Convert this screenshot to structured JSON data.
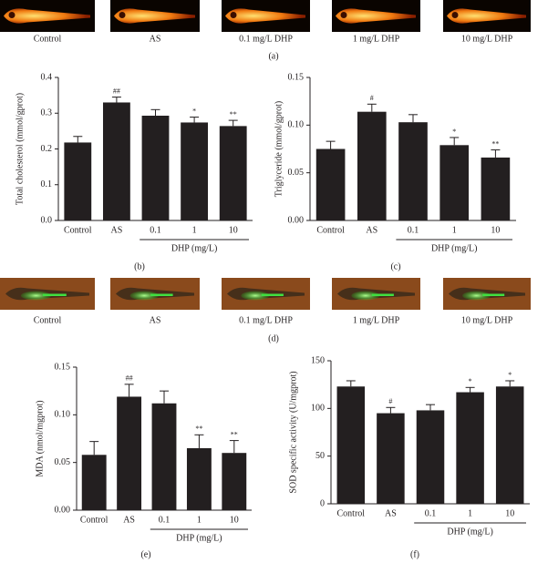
{
  "panel_a": {
    "labels": [
      "Control",
      "AS",
      "0.1 mg/L DHP",
      "1 mg/L DHP",
      "10 mg/L DHP"
    ],
    "caption": "(a)"
  },
  "panel_d": {
    "labels": [
      "Control",
      "AS",
      "0.1 mg/L DHP",
      "1 mg/L DHP",
      "10 mg/L DHP"
    ],
    "caption": "(d)"
  },
  "chart_data": [
    {
      "type": "bar",
      "caption": "(b)",
      "y_label": "Total cholesterol (mmol/gprot)",
      "group_label": "DHP (mg/L)",
      "categories": [
        "Control",
        "AS",
        "0.1",
        "1",
        "10"
      ],
      "values": [
        0.218,
        0.33,
        0.293,
        0.274,
        0.264
      ],
      "errors": [
        0.017,
        0.015,
        0.017,
        0.015,
        0.016
      ],
      "annotations": [
        null,
        "##",
        null,
        "*",
        "**"
      ],
      "color": "#231f20",
      "ylim": [
        0,
        0.4
      ],
      "yticks": [
        {
          "value": 0,
          "label": "0.0"
        },
        0.1,
        0.2,
        0.3,
        0.4
      ]
    },
    {
      "type": "bar",
      "caption": "(c)",
      "y_label": "Triglyceride (mmol/gprot)",
      "group_label": "DHP (mg/L)",
      "categories": [
        "Control",
        "AS",
        "0.1",
        "1",
        "10"
      ],
      "values": [
        0.075,
        0.114,
        0.103,
        0.079,
        0.066
      ],
      "errors": [
        0.008,
        0.008,
        0.008,
        0.008,
        0.008
      ],
      "annotations": [
        null,
        "#",
        null,
        "*",
        "**"
      ],
      "color": "#231f20",
      "ylim": [
        0,
        0.15
      ],
      "yticks": [
        {
          "value": 0,
          "label": "0.00"
        },
        0.05,
        {
          "value": 0.1,
          "label": "0.10"
        },
        0.15
      ]
    },
    {
      "type": "bar",
      "caption": "(e)",
      "y_label": "MDA (nmol/mgprot)",
      "group_label": "DHP (mg/L)",
      "categories": [
        "Control",
        "AS",
        "0.1",
        "1",
        "10"
      ],
      "values": [
        0.058,
        0.119,
        0.112,
        0.065,
        0.06
      ],
      "errors": [
        0.014,
        0.013,
        0.013,
        0.014,
        0.013
      ],
      "annotations": [
        null,
        "##",
        null,
        "**",
        "**"
      ],
      "color": "#231f20",
      "ylim": [
        0,
        0.15
      ],
      "yticks": [
        {
          "value": 0,
          "label": "0.00"
        },
        0.05,
        {
          "value": 0.1,
          "label": "0.10"
        },
        0.15
      ]
    },
    {
      "type": "bar",
      "caption": "(f)",
      "y_label": "SOD specific activity (U/mgprot)",
      "group_label": "DHP (mg/L)",
      "categories": [
        "Control",
        "AS",
        "0.1",
        "1",
        "10"
      ],
      "values": [
        123,
        95,
        98,
        117,
        123
      ],
      "errors": [
        6,
        6,
        6,
        5,
        6
      ],
      "annotations": [
        null,
        "#",
        null,
        "*",
        "*"
      ],
      "color": "#231f20",
      "ylim": [
        0,
        150
      ],
      "yticks": [
        0,
        50,
        100,
        150
      ]
    }
  ]
}
